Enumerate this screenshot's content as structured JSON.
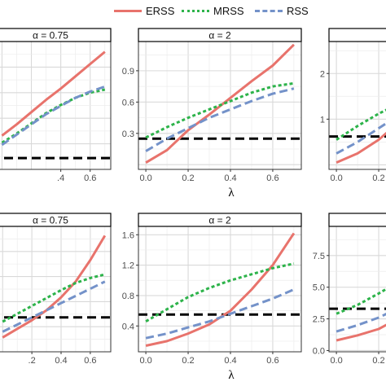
{
  "legend": [
    {
      "name": "ERSS",
      "color": "#e8736c",
      "dash": "solid"
    },
    {
      "name": "MRSS",
      "color": "#2db34a",
      "dash": "dotted"
    },
    {
      "name": "RSS",
      "color": "#7492c9",
      "dash": "dashed"
    }
  ],
  "chart_data": [
    {
      "type": "line",
      "strip": "α = 0.75",
      "xlim": [
        -0.08,
        0.74
      ],
      "ylim": [
        0.0,
        1.25
      ],
      "xticks": [
        0.4,
        0.6
      ],
      "xticklabels": [
        ".4",
        "0.6"
      ],
      "yticks": [],
      "yticklabels": [],
      "xlabel": "",
      "x": [
        0.0,
        0.1,
        0.2,
        0.3,
        0.4,
        0.5,
        0.6,
        0.7
      ],
      "series": [
        {
          "name": "ERSS",
          "values": [
            0.33,
            0.44,
            0.56,
            0.68,
            0.79,
            0.91,
            1.03,
            1.15
          ]
        },
        {
          "name": "MRSS",
          "values": [
            0.26,
            0.35,
            0.45,
            0.55,
            0.63,
            0.7,
            0.75,
            0.78
          ]
        },
        {
          "name": "RSS",
          "values": [
            0.24,
            0.34,
            0.44,
            0.54,
            0.62,
            0.7,
            0.76,
            0.81
          ]
        }
      ],
      "hline": 0.11
    },
    {
      "type": "line",
      "strip": "α = 2",
      "xlim": [
        -0.035,
        0.735
      ],
      "ylim": [
        -0.045,
        1.18
      ],
      "xticks": [
        0.0,
        0.2,
        0.4,
        0.6
      ],
      "xticklabels": [
        "0.0",
        "0.2",
        "0.4",
        "0.6"
      ],
      "yticks": [
        0.3,
        0.6,
        0.9
      ],
      "yticklabels": [
        "0.3",
        "0.6",
        "0.9"
      ],
      "xlabel": "λ",
      "x": [
        0.0,
        0.1,
        0.2,
        0.3,
        0.4,
        0.5,
        0.6,
        0.7
      ],
      "series": [
        {
          "name": "ERSS",
          "values": [
            0.02,
            0.14,
            0.33,
            0.48,
            0.64,
            0.8,
            0.95,
            1.15
          ]
        },
        {
          "name": "MRSS",
          "values": [
            0.26,
            0.36,
            0.45,
            0.53,
            0.61,
            0.69,
            0.75,
            0.78
          ]
        },
        {
          "name": "RSS",
          "values": [
            0.13,
            0.25,
            0.35,
            0.45,
            0.53,
            0.61,
            0.68,
            0.73
          ]
        }
      ],
      "hline": 0.25
    },
    {
      "type": "line",
      "strip": "",
      "xlim": [
        -0.035,
        0.735
      ],
      "ylim": [
        -0.1,
        2.7
      ],
      "xticks": [
        0.0,
        0.2
      ],
      "xticklabels": [
        "0.0",
        "0.2"
      ],
      "yticks": [
        1,
        2
      ],
      "yticklabels": [
        "1",
        "2"
      ],
      "xlabel": "",
      "x": [
        0.0,
        0.1,
        0.2,
        0.3
      ],
      "series": [
        {
          "name": "ERSS",
          "values": [
            0.05,
            0.25,
            0.55,
            0.95
          ]
        },
        {
          "name": "MRSS",
          "values": [
            0.55,
            0.85,
            1.12,
            1.35
          ]
        },
        {
          "name": "RSS",
          "values": [
            0.25,
            0.5,
            0.8,
            1.1
          ]
        }
      ],
      "hline": 0.62
    },
    {
      "type": "line",
      "strip": "α = 0.75",
      "xlim": [
        -0.085,
        0.74
      ],
      "ylim": [
        0.0,
        1.75
      ],
      "xticks": [
        0.2,
        0.4,
        0.6
      ],
      "xticklabels": ".2|0.4|0.6",
      "yticks": [],
      "yticklabels": [],
      "xlabel": "",
      "x": [
        0.0,
        0.1,
        0.2,
        0.3,
        0.4,
        0.5,
        0.6,
        0.7
      ],
      "series": [
        {
          "name": "ERSS",
          "values": [
            0.2,
            0.32,
            0.44,
            0.58,
            0.76,
            0.98,
            1.28,
            1.62
          ]
        },
        {
          "name": "MRSS",
          "values": [
            0.42,
            0.53,
            0.64,
            0.75,
            0.86,
            0.96,
            1.03,
            1.08
          ]
        },
        {
          "name": "RSS",
          "values": [
            0.28,
            0.38,
            0.48,
            0.58,
            0.68,
            0.78,
            0.88,
            0.98
          ]
        }
      ],
      "hline": 0.48
    },
    {
      "type": "line",
      "strip": "α = 2",
      "xlim": [
        -0.035,
        0.735
      ],
      "ylim": [
        0.06,
        1.71
      ],
      "xticks": [
        0.0,
        0.2,
        0.4,
        0.6
      ],
      "xticklabels": [
        "0.0",
        "0.2",
        "0.4",
        "0.6"
      ],
      "yticks": [
        0.4,
        0.8,
        1.2,
        1.6
      ],
      "yticklabels": [
        "0.4",
        "0.8",
        "1.2",
        "1.6"
      ],
      "xlabel": "λ",
      "x": [
        0.0,
        0.1,
        0.2,
        0.3,
        0.4,
        0.5,
        0.6,
        0.7
      ],
      "series": [
        {
          "name": "ERSS",
          "values": [
            0.14,
            0.2,
            0.3,
            0.42,
            0.6,
            0.88,
            1.2,
            1.62
          ]
        },
        {
          "name": "MRSS",
          "values": [
            0.46,
            0.62,
            0.78,
            0.9,
            1.0,
            1.08,
            1.16,
            1.22
          ]
        },
        {
          "name": "RSS",
          "values": [
            0.24,
            0.3,
            0.38,
            0.46,
            0.56,
            0.66,
            0.76,
            0.88
          ]
        }
      ],
      "hline": 0.55
    },
    {
      "type": "line",
      "strip": "",
      "xlim": [
        -0.035,
        0.735
      ],
      "ylim": [
        -0.1,
        9.8
      ],
      "xticks": [
        0.0,
        0.2
      ],
      "xticklabels": [
        "0.0",
        "0.2"
      ],
      "yticks": [
        0.0,
        2.5,
        5.0,
        7.5
      ],
      "yticklabels": [
        "0.0",
        "2.5",
        "5.0",
        "7.5"
      ],
      "xlabel": "",
      "x": [
        0.0,
        0.1,
        0.2,
        0.3
      ],
      "series": [
        {
          "name": "ERSS",
          "values": [
            0.8,
            1.2,
            1.7,
            2.6
          ]
        },
        {
          "name": "MRSS",
          "values": [
            2.9,
            3.6,
            4.5,
            5.5
          ]
        },
        {
          "name": "RSS",
          "values": [
            1.5,
            2.0,
            2.6,
            3.4
          ]
        }
      ],
      "hline": 3.3
    }
  ]
}
